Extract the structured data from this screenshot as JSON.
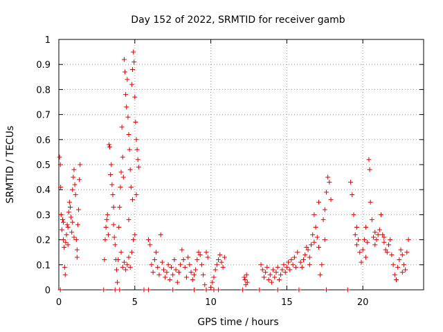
{
  "chart_data": {
    "type": "scatter",
    "title": "Day 152 of 2022, SRMTID for receiver gamb",
    "xlabel": "GPS time / hours",
    "ylabel": "SRMTID / TECUs",
    "xlim": [
      0,
      24
    ],
    "ylim": [
      0,
      1
    ],
    "xticks": [
      0,
      5,
      10,
      15,
      20
    ],
    "xtick_labels": [
      "0",
      "5",
      "10",
      "15",
      "20"
    ],
    "yticks": [
      0,
      0.1,
      0.2,
      0.3,
      0.4,
      0.5,
      0.6,
      0.7,
      0.8,
      0.9,
      1
    ],
    "ytick_labels": [
      "0",
      "0.1",
      "0.2",
      "0.3",
      "0.4",
      "0.5",
      "0.6",
      "0.7",
      "0.8",
      "0.9",
      "1"
    ],
    "grid": true,
    "marker": "+",
    "series": [
      {
        "name": "SRMTID",
        "color": "#e00000",
        "points": [
          [
            0.05,
            0.53
          ],
          [
            0.1,
            0.5
          ],
          [
            0.12,
            0.41
          ],
          [
            0.15,
            0.3
          ],
          [
            0.2,
            0.24
          ],
          [
            0.25,
            0.28
          ],
          [
            0.3,
            0.2
          ],
          [
            0.35,
            0.17
          ],
          [
            0.38,
            0.09
          ],
          [
            0.42,
            0.06
          ],
          [
            0.45,
            0.19
          ],
          [
            0.5,
            0.22
          ],
          [
            0.55,
            0.26
          ],
          [
            0.6,
            0.25
          ],
          [
            0.65,
            0.31
          ],
          [
            0.7,
            0.35
          ],
          [
            0.75,
            0.33
          ],
          [
            0.8,
            0.29
          ],
          [
            0.85,
            0.23
          ],
          [
            0.9,
            0.4
          ],
          [
            0.95,
            0.45
          ],
          [
            1.0,
            0.48
          ],
          [
            1.05,
            0.42
          ],
          [
            1.1,
            0.38
          ],
          [
            1.15,
            0.2
          ],
          [
            1.2,
            0.13
          ],
          [
            1.25,
            0.26
          ],
          [
            1.3,
            0.32
          ],
          [
            1.35,
            0.44
          ],
          [
            1.4,
            0.5
          ],
          [
            0.3,
            0.27
          ],
          [
            0.6,
            0.18
          ],
          [
            0.9,
            0.27
          ],
          [
            1.0,
            0.21
          ],
          [
            1.2,
            0.16
          ],
          [
            3.0,
            0.12
          ],
          [
            3.05,
            0.2
          ],
          [
            3.1,
            0.25
          ],
          [
            3.15,
            0.28
          ],
          [
            3.2,
            0.3
          ],
          [
            3.25,
            0.22
          ],
          [
            3.3,
            0.58
          ],
          [
            3.35,
            0.57
          ],
          [
            3.4,
            0.46
          ],
          [
            3.45,
            0.5
          ],
          [
            3.5,
            0.42
          ],
          [
            3.55,
            0.38
          ],
          [
            3.6,
            0.26
          ],
          [
            3.65,
            0.21
          ],
          [
            3.7,
            0.18
          ],
          [
            3.75,
            0.12
          ],
          [
            3.8,
            0.08
          ],
          [
            3.85,
            0.03
          ],
          [
            3.9,
            0.12
          ],
          [
            3.95,
            0.25
          ],
          [
            4.0,
            0.33
          ],
          [
            4.05,
            0.41
          ],
          [
            4.1,
            0.47
          ],
          [
            4.15,
            0.65
          ],
          [
            4.2,
            0.53
          ],
          [
            4.25,
            0.45
          ],
          [
            4.3,
            0.92
          ],
          [
            4.35,
            0.87
          ],
          [
            4.4,
            0.78
          ],
          [
            4.45,
            0.73
          ],
          [
            4.5,
            0.84
          ],
          [
            4.55,
            0.69
          ],
          [
            4.6,
            0.62
          ],
          [
            4.65,
            0.56
          ],
          [
            4.7,
            0.48
          ],
          [
            4.75,
            0.41
          ],
          [
            4.8,
            0.82
          ],
          [
            4.85,
            0.88
          ],
          [
            4.9,
            0.95
          ],
          [
            4.95,
            0.91
          ],
          [
            5.0,
            0.77
          ],
          [
            5.05,
            0.67
          ],
          [
            5.1,
            0.6
          ],
          [
            5.15,
            0.56
          ],
          [
            5.2,
            0.52
          ],
          [
            5.25,
            0.49
          ],
          [
            4.3,
            0.11
          ],
          [
            4.4,
            0.08
          ],
          [
            4.5,
            0.1
          ],
          [
            4.6,
            0.13
          ],
          [
            4.7,
            0.09
          ],
          [
            4.8,
            0.15
          ],
          [
            4.9,
            0.2
          ],
          [
            5.0,
            0.22
          ],
          [
            4.2,
            0.09
          ],
          [
            4.1,
            0.15
          ],
          [
            4.6,
            0.28
          ],
          [
            4.85,
            0.36
          ],
          [
            5.1,
            0.38
          ],
          [
            3.6,
            0.33
          ],
          [
            5.9,
            0.2
          ],
          [
            6.0,
            0.18
          ],
          [
            6.1,
            0.1
          ],
          [
            6.2,
            0.07
          ],
          [
            6.3,
            0.12
          ],
          [
            6.4,
            0.15
          ],
          [
            6.5,
            0.09
          ],
          [
            6.6,
            0.06
          ],
          [
            6.7,
            0.22
          ],
          [
            6.8,
            0.11
          ],
          [
            6.9,
            0.08
          ],
          [
            7.0,
            0.05
          ],
          [
            7.1,
            0.07
          ],
          [
            7.2,
            0.1
          ],
          [
            7.3,
            0.04
          ],
          [
            7.4,
            0.09
          ],
          [
            7.5,
            0.06
          ],
          [
            7.6,
            0.12
          ],
          [
            7.7,
            0.08
          ],
          [
            7.8,
            0.03
          ],
          [
            7.9,
            0.07
          ],
          [
            8.0,
            0.1
          ],
          [
            8.1,
            0.16
          ],
          [
            8.2,
            0.12
          ],
          [
            8.3,
            0.09
          ],
          [
            8.4,
            0.05
          ],
          [
            8.5,
            0.13
          ],
          [
            8.6,
            0.1
          ],
          [
            8.7,
            0.07
          ],
          [
            8.8,
            0.04
          ],
          [
            8.9,
            0.06
          ],
          [
            9.0,
            0.08
          ],
          [
            9.1,
            0.12
          ],
          [
            9.2,
            0.15
          ],
          [
            9.3,
            0.14
          ],
          [
            9.4,
            0.1
          ],
          [
            9.5,
            0.06
          ],
          [
            9.6,
            0.02
          ],
          [
            9.7,
            0.15
          ],
          [
            9.8,
            0.13
          ],
          [
            10.0,
            0.01
          ],
          [
            10.1,
            0.03
          ],
          [
            10.2,
            0.05
          ],
          [
            10.3,
            0.08
          ],
          [
            10.4,
            0.1
          ],
          [
            10.5,
            0.12
          ],
          [
            10.6,
            0.14
          ],
          [
            10.7,
            0.11
          ],
          [
            10.8,
            0.09
          ],
          [
            10.9,
            0.13
          ],
          [
            12.2,
            0.05
          ],
          [
            12.25,
            0.04
          ],
          [
            12.3,
            0.02
          ],
          [
            12.35,
            0.06
          ],
          [
            12.4,
            0.03
          ],
          [
            13.3,
            0.1
          ],
          [
            13.4,
            0.08
          ],
          [
            13.5,
            0.05
          ],
          [
            13.6,
            0.07
          ],
          [
            13.7,
            0.09
          ],
          [
            13.8,
            0.04
          ],
          [
            13.9,
            0.06
          ],
          [
            14.0,
            0.03
          ],
          [
            14.1,
            0.08
          ],
          [
            14.2,
            0.05
          ],
          [
            14.3,
            0.07
          ],
          [
            14.4,
            0.09
          ],
          [
            14.5,
            0.04
          ],
          [
            14.6,
            0.06
          ],
          [
            14.7,
            0.08
          ],
          [
            14.8,
            0.1
          ],
          [
            14.9,
            0.07
          ],
          [
            15.0,
            0.09
          ],
          [
            15.1,
            0.11
          ],
          [
            15.2,
            0.08
          ],
          [
            15.3,
            0.12
          ],
          [
            15.4,
            0.1
          ],
          [
            15.5,
            0.13
          ],
          [
            15.6,
            0.09
          ],
          [
            15.7,
            0.15
          ],
          [
            15.9,
            0.11
          ],
          [
            16.0,
            0.09
          ],
          [
            16.1,
            0.12
          ],
          [
            16.2,
            0.14
          ],
          [
            16.3,
            0.17
          ],
          [
            16.4,
            0.16
          ],
          [
            16.5,
            0.13
          ],
          [
            16.6,
            0.18
          ],
          [
            16.7,
            0.22
          ],
          [
            16.8,
            0.19
          ],
          [
            16.9,
            0.25
          ],
          [
            17.0,
            0.21
          ],
          [
            17.1,
            0.17
          ],
          [
            17.2,
            0.06
          ],
          [
            17.3,
            0.1
          ],
          [
            17.4,
            0.28
          ],
          [
            17.5,
            0.32
          ],
          [
            17.6,
            0.39
          ],
          [
            17.7,
            0.45
          ],
          [
            17.8,
            0.43
          ],
          [
            17.9,
            0.36
          ],
          [
            16.5,
            0.1
          ],
          [
            16.8,
            0.3
          ],
          [
            17.1,
            0.35
          ],
          [
            17.5,
            0.2
          ],
          [
            19.2,
            0.43
          ],
          [
            19.3,
            0.38
          ],
          [
            19.4,
            0.3
          ],
          [
            19.5,
            0.22
          ],
          [
            19.6,
            0.18
          ],
          [
            19.7,
            0.2
          ],
          [
            19.8,
            0.15
          ],
          [
            19.9,
            0.11
          ],
          [
            20.0,
            0.16
          ],
          [
            20.1,
            0.2
          ],
          [
            20.2,
            0.25
          ],
          [
            20.3,
            0.19
          ],
          [
            20.4,
            0.52
          ],
          [
            20.45,
            0.48
          ],
          [
            20.5,
            0.35
          ],
          [
            20.6,
            0.28
          ],
          [
            20.7,
            0.21
          ],
          [
            20.8,
            0.18
          ],
          [
            20.9,
            0.2
          ],
          [
            21.0,
            0.22
          ],
          [
            21.1,
            0.24
          ],
          [
            21.2,
            0.3
          ],
          [
            21.3,
            0.22
          ],
          [
            21.4,
            0.19
          ],
          [
            21.5,
            0.16
          ],
          [
            21.6,
            0.15
          ],
          [
            21.7,
            0.18
          ],
          [
            21.8,
            0.2
          ],
          [
            21.9,
            0.14
          ],
          [
            22.0,
            0.1
          ],
          [
            22.1,
            0.06
          ],
          [
            22.2,
            0.04
          ],
          [
            22.3,
            0.09
          ],
          [
            22.4,
            0.12
          ],
          [
            22.5,
            0.16
          ],
          [
            22.6,
            0.14
          ],
          [
            22.7,
            0.1
          ],
          [
            22.8,
            0.08
          ],
          [
            22.9,
            0.15
          ],
          [
            23.0,
            0.2
          ],
          [
            19.6,
            0.25
          ],
          [
            20.2,
            0.13
          ],
          [
            20.8,
            0.23
          ],
          [
            21.4,
            0.21
          ],
          [
            22.6,
            0.07
          ],
          [
            0.1,
            0.0
          ],
          [
            2.95,
            0.0
          ],
          [
            3.7,
            0.0
          ],
          [
            4.0,
            0.0
          ],
          [
            5.6,
            0.0
          ],
          [
            5.9,
            0.0
          ],
          [
            7.5,
            0.0
          ],
          [
            8.9,
            0.0
          ],
          [
            9.7,
            0.0
          ],
          [
            10.2,
            0.0
          ],
          [
            10.5,
            0.0
          ],
          [
            12.1,
            0.0
          ],
          [
            13.2,
            0.0
          ],
          [
            14.4,
            0.0
          ],
          [
            15.8,
            0.0
          ],
          [
            17.6,
            0.0
          ],
          [
            19.0,
            0.0
          ]
        ]
      }
    ]
  }
}
